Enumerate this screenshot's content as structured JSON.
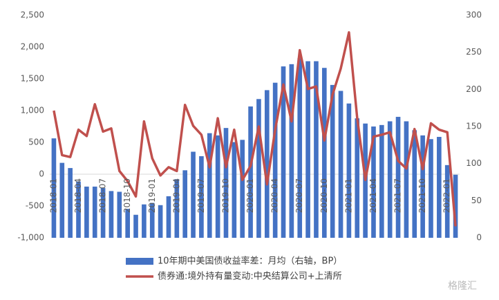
{
  "chart_data": {
    "type": "bar-line",
    "legend_position": "bottom",
    "categories": [
      "2018-01",
      null,
      null,
      "2018-04",
      null,
      null,
      "2018-07",
      null,
      null,
      "2018-10",
      null,
      null,
      "2019-01",
      null,
      null,
      "2019-04",
      null,
      null,
      "2019-07",
      null,
      null,
      "2019-10",
      null,
      null,
      "2020-01",
      null,
      null,
      "2020-04",
      null,
      null,
      "2020-07",
      null,
      null,
      "2020-10",
      null,
      null,
      "2021-01",
      null,
      null,
      "2021-04",
      null,
      null,
      "2021-07",
      null,
      null,
      "2021-10",
      null,
      null,
      "2022-01",
      null
    ],
    "series": [
      {
        "name": "10年期中美国债收益率差：月均（右轴，BP）",
        "kind": "bar",
        "axis": "y2",
        "color": "#4472c4",
        "values": [
          134,
          101,
          94,
          76,
          69,
          69,
          67,
          63,
          62,
          39,
          31,
          45,
          47,
          44,
          56,
          79,
          91,
          116,
          110,
          141,
          138,
          148,
          129,
          132,
          177,
          187,
          199,
          209,
          231,
          234,
          242,
          238,
          238,
          229,
          206,
          198,
          181,
          161,
          154,
          150,
          152,
          157,
          163,
          157,
          145,
          138,
          133,
          136,
          98,
          85
        ]
      },
      {
        "name": "债券通:境外持有量变动:中央结算公司+上清所",
        "kind": "line",
        "axis": "y",
        "color": "#c0504d",
        "values": [
          1000,
          300,
          270,
          700,
          600,
          1100,
          670,
          720,
          50,
          -110,
          -350,
          830,
          250,
          -20,
          110,
          50,
          1090,
          760,
          620,
          110,
          880,
          110,
          700,
          -90,
          130,
          750,
          -160,
          700,
          1410,
          830,
          1950,
          1340,
          1380,
          530,
          1250,
          1660,
          2230,
          890,
          -90,
          590,
          620,
          660,
          210,
          90,
          710,
          80,
          800,
          700,
          660,
          -820
        ]
      }
    ],
    "ylim": [
      -1000,
      2500
    ],
    "yticks": [
      {
        "value": -1000,
        "label": "-1,000"
      },
      {
        "value": -500,
        "label": "-500"
      },
      0,
      {
        "value": 500,
        "label": "500"
      },
      {
        "value": 1000,
        "label": "1,000"
      },
      {
        "value": 1500,
        "label": "1,500"
      },
      {
        "value": 2000,
        "label": "2,000"
      },
      {
        "value": 2500,
        "label": "2,500"
      }
    ],
    "y2lim": [
      0,
      300
    ],
    "y2ticks": [
      0,
      50,
      100,
      150,
      200,
      250,
      300
    ],
    "watermark": "格隆汇"
  }
}
